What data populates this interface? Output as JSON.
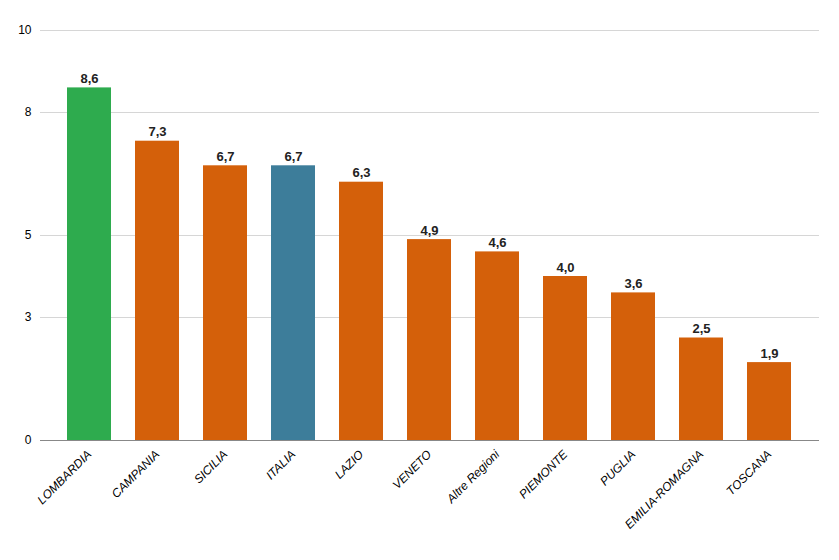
{
  "chart_data": {
    "type": "bar",
    "categories": [
      "LOMBARDIA",
      "CAMPANIA",
      "SICILIA",
      "ITALIA",
      "LAZIO",
      "VENETO",
      "Altre Regioni",
      "PIEMONTE",
      "PUGLIA",
      "EMILIA-ROMAGNA",
      "TOSCANA"
    ],
    "values": [
      8.6,
      7.3,
      6.7,
      6.7,
      6.3,
      4.9,
      4.6,
      4.0,
      3.6,
      2.5,
      1.9
    ],
    "value_labels": [
      "8,6",
      "7,3",
      "6,7",
      "6,7",
      "6,3",
      "4,9",
      "4,6",
      "4,0",
      "3,6",
      "2,5",
      "1,9"
    ],
    "colors": [
      "#2eab4e",
      "#d4600a",
      "#d4600a",
      "#3d7d9a",
      "#d4600a",
      "#d4600a",
      "#d4600a",
      "#d4600a",
      "#d4600a",
      "#d4600a",
      "#d4600a"
    ],
    "ylim": [
      0,
      10
    ],
    "yticks": [
      0,
      3,
      5,
      8,
      10
    ],
    "grid": true,
    "data_labels": true
  }
}
